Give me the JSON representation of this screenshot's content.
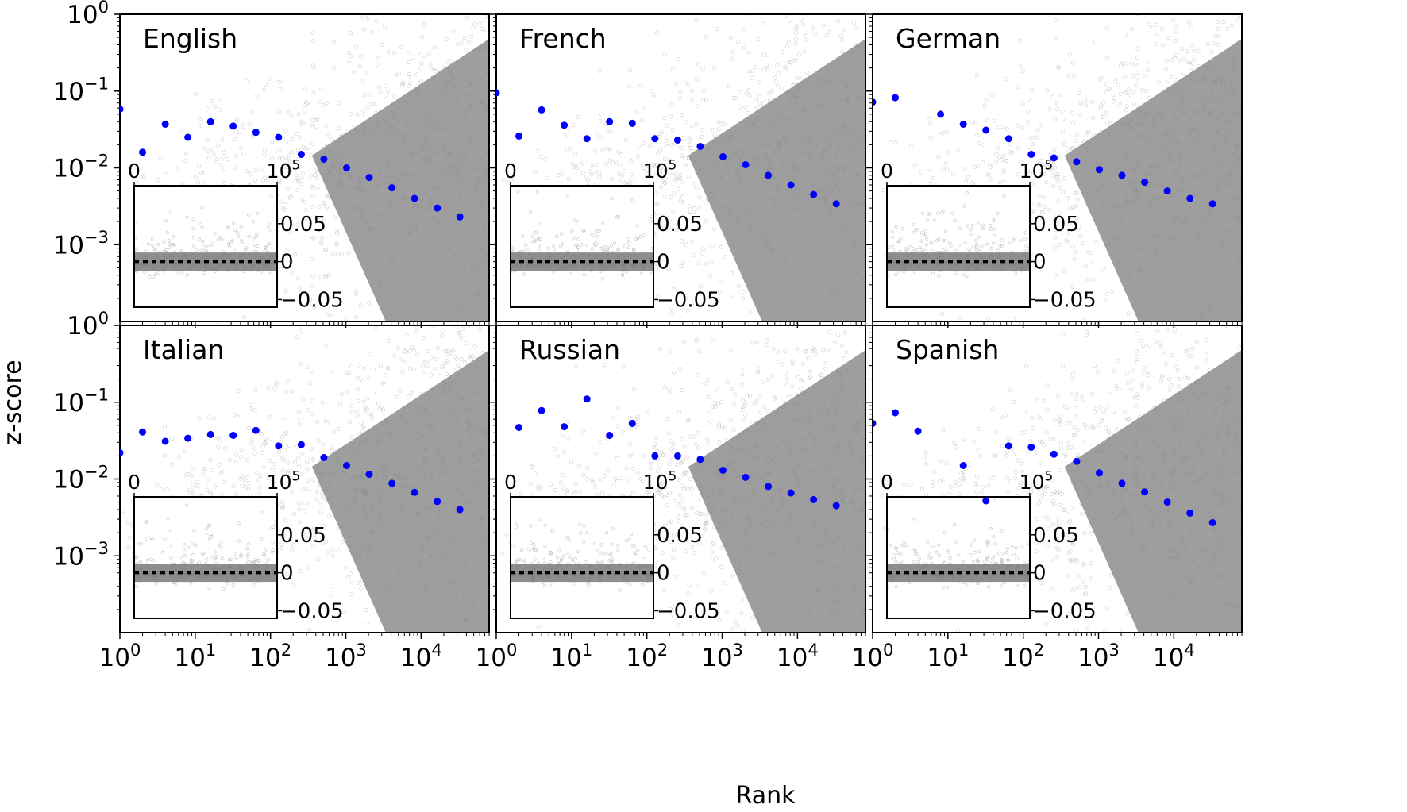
{
  "figure": {
    "ylabel": "z-score",
    "xlabel": "Rank"
  },
  "chart_data": [
    {
      "type": "scatter",
      "title": "English",
      "xscale": "log",
      "yscale": "log",
      "xlim": [
        1,
        80000
      ],
      "ylim": [
        0.0001,
        1
      ],
      "xticks": [
        "10^0",
        "10^1",
        "10^2",
        "10^3",
        "10^4"
      ],
      "yticks": [
        "10^0",
        "10^-1",
        "10^-2",
        "10^-3"
      ],
      "series": [
        {
          "x": [
            1,
            2,
            4,
            8,
            16,
            32,
            64,
            128,
            256,
            512,
            1024,
            2048,
            4096,
            8192,
            16384,
            32768
          ],
          "y": [
            0.058,
            0.016,
            0.037,
            0.025,
            0.04,
            0.035,
            0.029,
            0.025,
            0.015,
            0.013,
            0.01,
            0.0075,
            0.0055,
            0.004,
            0.003,
            0.0023
          ],
          "color": "#0000ff"
        }
      ],
      "inset": {
        "xlim": [
          0,
          100000
        ],
        "xticks": [
          "0",
          "10^5"
        ],
        "yticks": [
          "0.05",
          "0",
          "−0.05"
        ],
        "ylim": [
          -0.06,
          0.1
        ]
      }
    },
    {
      "type": "scatter",
      "title": "French",
      "xscale": "log",
      "yscale": "log",
      "xlim": [
        1,
        80000
      ],
      "ylim": [
        0.0001,
        1
      ],
      "xticks": [
        "10^0",
        "10^1",
        "10^2",
        "10^3",
        "10^4"
      ],
      "yticks": [],
      "series": [
        {
          "x": [
            1,
            2,
            4,
            8,
            16,
            32,
            64,
            128,
            256,
            512,
            1024,
            2048,
            4096,
            8192,
            16384,
            32768
          ],
          "y": [
            0.095,
            0.026,
            0.057,
            0.036,
            0.024,
            0.04,
            0.038,
            0.024,
            0.023,
            0.019,
            0.014,
            0.011,
            0.008,
            0.006,
            0.0045,
            0.0034
          ],
          "color": "#0000ff"
        }
      ],
      "inset": {
        "xlim": [
          0,
          100000
        ],
        "xticks": [
          "0",
          "10^5"
        ],
        "yticks": [
          "0.05",
          "0",
          "−0.05"
        ],
        "ylim": [
          -0.06,
          0.1
        ]
      }
    },
    {
      "type": "scatter",
      "title": "German",
      "xscale": "log",
      "yscale": "log",
      "xlim": [
        1,
        80000
      ],
      "ylim": [
        0.0001,
        1
      ],
      "xticks": [
        "10^0",
        "10^1",
        "10^2",
        "10^3",
        "10^4"
      ],
      "yticks": [],
      "series": [
        {
          "x": [
            1,
            2,
            8,
            16,
            32,
            64,
            128,
            256,
            512,
            1024,
            2048,
            4096,
            8192,
            16384,
            32768
          ],
          "y": [
            0.072,
            0.082,
            0.05,
            0.037,
            0.031,
            0.024,
            0.015,
            0.0135,
            0.012,
            0.0095,
            0.008,
            0.0065,
            0.005,
            0.004,
            0.0034
          ],
          "color": "#0000ff"
        }
      ],
      "inset": {
        "xlim": [
          0,
          100000
        ],
        "xticks": [
          "0",
          "10^5"
        ],
        "yticks": [
          "0.05",
          "0",
          "−0.05"
        ],
        "ylim": [
          -0.06,
          0.1
        ]
      }
    },
    {
      "type": "scatter",
      "title": "Italian",
      "xscale": "log",
      "yscale": "log",
      "xlim": [
        1,
        80000
      ],
      "ylim": [
        0.0001,
        1
      ],
      "xticks": [
        "10^0",
        "10^1",
        "10^2",
        "10^3",
        "10^4"
      ],
      "yticks": [
        "10^0",
        "10^-1",
        "10^-2",
        "10^-3"
      ],
      "series": [
        {
          "x": [
            1,
            2,
            4,
            8,
            16,
            32,
            64,
            128,
            256,
            512,
            1024,
            2048,
            4096,
            8192,
            16384,
            32768
          ],
          "y": [
            0.022,
            0.041,
            0.031,
            0.034,
            0.038,
            0.037,
            0.043,
            0.027,
            0.028,
            0.019,
            0.015,
            0.0115,
            0.0088,
            0.0067,
            0.0051,
            0.004
          ],
          "color": "#0000ff"
        }
      ],
      "inset": {
        "xlim": [
          0,
          100000
        ],
        "xticks": [
          "0",
          "10^5"
        ],
        "yticks": [
          "0.05",
          "0",
          "−0.05"
        ],
        "ylim": [
          -0.06,
          0.1
        ]
      }
    },
    {
      "type": "scatter",
      "title": "Russian",
      "xscale": "log",
      "yscale": "log",
      "xlim": [
        1,
        80000
      ],
      "ylim": [
        0.0001,
        1
      ],
      "xticks": [
        "10^0",
        "10^1",
        "10^2",
        "10^3",
        "10^4"
      ],
      "yticks": [],
      "series": [
        {
          "x": [
            2,
            4,
            8,
            16,
            32,
            64,
            128,
            256,
            512,
            1024,
            2048,
            4096,
            8192,
            16384,
            32768
          ],
          "y": [
            0.047,
            0.078,
            0.048,
            0.11,
            0.037,
            0.053,
            0.02,
            0.02,
            0.018,
            0.013,
            0.0105,
            0.008,
            0.0066,
            0.0054,
            0.0045
          ],
          "color": "#0000ff"
        }
      ],
      "inset": {
        "xlim": [
          0,
          100000
        ],
        "xticks": [
          "0",
          "10^5"
        ],
        "yticks": [
          "0.05",
          "0",
          "−0.05"
        ],
        "ylim": [
          -0.06,
          0.1
        ]
      }
    },
    {
      "type": "scatter",
      "title": "Spanish",
      "xscale": "log",
      "yscale": "log",
      "xlim": [
        1,
        80000
      ],
      "ylim": [
        0.0001,
        1
      ],
      "xticks": [
        "10^0",
        "10^1",
        "10^2",
        "10^3",
        "10^4"
      ],
      "yticks": [],
      "series": [
        {
          "x": [
            1,
            2,
            4,
            16,
            32,
            64,
            128,
            256,
            512,
            1024,
            2048,
            4096,
            8192,
            16384,
            32768
          ],
          "y": [
            0.053,
            0.073,
            0.042,
            0.015,
            0.0052,
            0.027,
            0.026,
            0.021,
            0.017,
            0.012,
            0.0088,
            0.0068,
            0.005,
            0.0036,
            0.0027
          ],
          "color": "#0000ff"
        }
      ],
      "inset": {
        "xlim": [
          0,
          100000
        ],
        "xticks": [
          "0",
          "10^5"
        ],
        "yticks": [
          "0.05",
          "0",
          "−0.05"
        ],
        "ylim": [
          -0.06,
          0.1
        ]
      }
    }
  ]
}
